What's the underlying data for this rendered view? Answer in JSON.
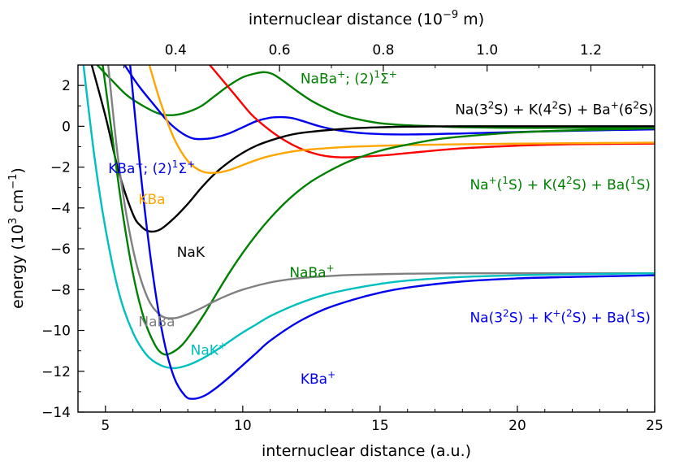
{
  "chart_data": {
    "type": "line",
    "xlabel": "internuclear distance (a.u.)",
    "ylabel_parts": [
      "energy (10",
      "3",
      " cm",
      "−1",
      ")"
    ],
    "top_axis_label_parts": [
      "internuclear distance (10",
      "−9",
      " m)"
    ],
    "xlim": [
      4,
      25
    ],
    "ylim": [
      -14,
      3
    ],
    "x_ticks": [
      5,
      10,
      15,
      20,
      25
    ],
    "y_ticks": [
      -14,
      -12,
      -10,
      -8,
      -6,
      -4,
      -2,
      0,
      2
    ],
    "y_tick_labels": [
      "−14",
      "−12",
      "−10",
      "−8",
      "−6",
      "−4",
      "−2",
      "0",
      "2"
    ],
    "top_ticks_nm": [
      0.4,
      0.6,
      0.8,
      1.0,
      1.2
    ],
    "top_tick_labels": [
      "0.4",
      "0.6",
      "0.8",
      "1.0",
      "1.2"
    ],
    "bohr_nm": 0.0529177,
    "series": [
      {
        "name": "NaBa+ (2)1Σ+",
        "color": "#008000",
        "x": [
          4.7,
          5.2,
          5.8,
          6.5,
          7.0,
          7.5,
          8.0,
          8.5,
          9.0,
          9.5,
          10.0,
          10.5,
          10.8,
          11.1,
          11.5,
          12.0,
          12.5,
          13.0,
          13.5,
          14.0,
          15.0,
          16.0,
          17.0,
          18.0,
          20.0,
          22.0,
          25.0
        ],
        "y": [
          3.0,
          2.3,
          1.5,
          0.9,
          0.6,
          0.55,
          0.7,
          1.0,
          1.5,
          2.0,
          2.4,
          2.6,
          2.65,
          2.55,
          2.2,
          1.7,
          1.25,
          0.9,
          0.6,
          0.4,
          0.15,
          0.05,
          0.0,
          -0.05,
          -0.08,
          -0.08,
          -0.1
        ]
      },
      {
        "name": "KBa+ (2)1Σ+",
        "color": "#0000ee",
        "x": [
          5.7,
          6.2,
          6.8,
          7.3,
          7.8,
          8.2,
          8.6,
          9.0,
          9.5,
          10.0,
          10.5,
          11.0,
          11.4,
          11.8,
          12.2,
          12.8,
          13.5,
          14.5,
          16.0,
          18.0,
          20.0,
          22.0,
          25.0
        ],
        "y": [
          3.0,
          2.0,
          1.0,
          0.2,
          -0.35,
          -0.6,
          -0.62,
          -0.55,
          -0.35,
          -0.05,
          0.25,
          0.42,
          0.45,
          0.4,
          0.25,
          0.0,
          -0.2,
          -0.35,
          -0.4,
          -0.35,
          -0.28,
          -0.22,
          -0.15
        ]
      },
      {
        "name": "red curve",
        "color": "#ff0000",
        "x": [
          8.8,
          9.3,
          9.8,
          10.3,
          10.8,
          11.3,
          11.8,
          12.3,
          12.8,
          13.3,
          13.8,
          14.5,
          15.5,
          16.5,
          18.0,
          20.0,
          22.0,
          25.0
        ],
        "y": [
          3.0,
          2.2,
          1.4,
          0.6,
          0.0,
          -0.5,
          -0.9,
          -1.2,
          -1.4,
          -1.5,
          -1.52,
          -1.48,
          -1.38,
          -1.25,
          -1.08,
          -0.95,
          -0.88,
          -0.85
        ]
      },
      {
        "name": "NaK",
        "color": "#000000",
        "x": [
          4.5,
          5.0,
          5.5,
          6.0,
          6.3,
          6.6,
          7.0,
          7.5,
          8.0,
          8.5,
          9.0,
          9.5,
          10.0,
          10.5,
          11.0,
          11.5,
          12.0,
          13.0,
          14.0,
          15.0,
          16.0,
          18.0,
          20.0,
          25.0
        ],
        "y": [
          3.0,
          0.5,
          -2.3,
          -4.3,
          -4.9,
          -5.15,
          -5.05,
          -4.5,
          -3.8,
          -3.0,
          -2.3,
          -1.75,
          -1.3,
          -0.95,
          -0.7,
          -0.5,
          -0.35,
          -0.2,
          -0.1,
          -0.05,
          -0.02,
          0.0,
          0.0,
          0.0
        ]
      },
      {
        "name": "KBa",
        "color": "#ffa500",
        "x": [
          6.6,
          7.0,
          7.5,
          8.0,
          8.5,
          9.0,
          9.5,
          10.0,
          10.5,
          11.0,
          12.0,
          13.0,
          14.0,
          16.0,
          18.0,
          20.0,
          22.0,
          25.0
        ],
        "y": [
          3.0,
          1.2,
          -0.6,
          -1.7,
          -2.2,
          -2.28,
          -2.15,
          -1.9,
          -1.65,
          -1.45,
          -1.2,
          -1.08,
          -1.0,
          -0.92,
          -0.88,
          -0.85,
          -0.83,
          -0.8
        ]
      },
      {
        "name": "NaBa+",
        "color": "#008000",
        "x": [
          4.9,
          5.2,
          5.6,
          6.0,
          6.4,
          6.8,
          7.1,
          7.4,
          7.8,
          8.2,
          8.6,
          9.0,
          9.5,
          10.0,
          10.5,
          11.0,
          11.5,
          12.0,
          12.5,
          13.0,
          13.5,
          14.0,
          15.0,
          16.0,
          17.0,
          18.0,
          20.0,
          22.0,
          25.0
        ],
        "y": [
          3.0,
          0.0,
          -4.0,
          -7.2,
          -9.4,
          -10.7,
          -11.15,
          -11.1,
          -10.7,
          -10.0,
          -9.2,
          -8.3,
          -7.2,
          -6.2,
          -5.3,
          -4.5,
          -3.8,
          -3.2,
          -2.7,
          -2.3,
          -1.95,
          -1.65,
          -1.2,
          -0.9,
          -0.65,
          -0.5,
          -0.3,
          -0.2,
          -0.1
        ]
      },
      {
        "name": "NaBa",
        "color": "#808080",
        "x": [
          5.1,
          5.5,
          6.0,
          6.5,
          7.0,
          7.5,
          8.0,
          8.5,
          9.0,
          9.5,
          10.0,
          11.0,
          12.0,
          13.0,
          14.0,
          16.0,
          18.0,
          20.0,
          22.0,
          25.0
        ],
        "y": [
          3.0,
          -2.0,
          -6.0,
          -8.3,
          -9.25,
          -9.4,
          -9.2,
          -8.9,
          -8.55,
          -8.25,
          -8.0,
          -7.65,
          -7.45,
          -7.35,
          -7.28,
          -7.22,
          -7.2,
          -7.2,
          -7.2,
          -7.2
        ]
      },
      {
        "name": "NaK+",
        "color": "#00bfbf",
        "x": [
          4.2,
          4.6,
          5.0,
          5.5,
          6.0,
          6.5,
          7.0,
          7.5,
          8.0,
          8.5,
          9.0,
          9.5,
          10.0,
          10.5,
          11.0,
          12.0,
          13.0,
          14.0,
          15.0,
          16.0,
          18.0,
          20.0,
          22.0,
          25.0
        ],
        "y": [
          3.0,
          -1.5,
          -5.0,
          -8.2,
          -10.1,
          -11.2,
          -11.7,
          -11.85,
          -11.7,
          -11.4,
          -11.0,
          -10.55,
          -10.1,
          -9.7,
          -9.3,
          -8.7,
          -8.25,
          -7.95,
          -7.72,
          -7.56,
          -7.38,
          -7.3,
          -7.25,
          -7.2
        ]
      },
      {
        "name": "KBa+",
        "color": "#0000ee",
        "x": [
          5.9,
          6.3,
          6.7,
          7.1,
          7.5,
          7.9,
          8.2,
          8.6,
          9.0,
          9.5,
          10.0,
          10.5,
          11.0,
          12.0,
          13.0,
          14.0,
          15.0,
          16.0,
          18.0,
          20.0,
          22.0,
          25.0
        ],
        "y": [
          3.0,
          -2.5,
          -7.0,
          -10.3,
          -12.3,
          -13.2,
          -13.35,
          -13.2,
          -12.85,
          -12.3,
          -11.7,
          -11.1,
          -10.5,
          -9.6,
          -8.95,
          -8.5,
          -8.15,
          -7.9,
          -7.6,
          -7.45,
          -7.38,
          -7.3
        ]
      }
    ],
    "annotations": [
      {
        "id": "nabap2",
        "color": "#008000",
        "x": 12.1,
        "y": 2.1,
        "parts": [
          [
            "NaBa",
            ""
          ],
          [
            "+",
            "sup"
          ],
          [
            "; (2)",
            ""
          ],
          [
            "1",
            "sup"
          ],
          [
            "Σ",
            ""
          ],
          [
            "+",
            "sup"
          ]
        ]
      },
      {
        "id": "asym0",
        "color": "#000000",
        "x": 24.95,
        "y": 0.6,
        "anchor": "end",
        "parts": [
          [
            "Na(3",
            ""
          ],
          [
            "2",
            "sup"
          ],
          [
            "S) + K(4",
            ""
          ],
          [
            "2",
            "sup"
          ],
          [
            "S) + Ba",
            ""
          ],
          [
            "+",
            "sup"
          ],
          [
            "(6",
            ""
          ],
          [
            "2",
            "sup"
          ],
          [
            "S)",
            ""
          ]
        ]
      },
      {
        "id": "kbap2",
        "color": "#0000ee",
        "x": 5.1,
        "y": -2.3,
        "parts": [
          [
            "KBa",
            ""
          ],
          [
            "+",
            "sup"
          ],
          [
            "; (2)",
            ""
          ],
          [
            "1",
            "sup"
          ],
          [
            "Σ",
            ""
          ],
          [
            "+",
            "sup"
          ]
        ]
      },
      {
        "id": "asym1",
        "color": "#008000",
        "x": 24.85,
        "y": -3.1,
        "anchor": "end",
        "parts": [
          [
            "Na",
            ""
          ],
          [
            "+",
            "sup"
          ],
          [
            "(",
            ""
          ],
          [
            "1",
            "sup"
          ],
          [
            "S) + K(4",
            ""
          ],
          [
            "2",
            "sup"
          ],
          [
            "S) + Ba(",
            ""
          ],
          [
            "1",
            "sup"
          ],
          [
            "S)",
            ""
          ]
        ]
      },
      {
        "id": "kba",
        "color": "#ffa500",
        "x": 6.2,
        "y": -3.8,
        "parts": [
          [
            "KBa",
            ""
          ]
        ]
      },
      {
        "id": "nak",
        "color": "#000000",
        "x": 7.6,
        "y": -6.4,
        "parts": [
          [
            "NaK",
            ""
          ]
        ]
      },
      {
        "id": "nabap",
        "color": "#008000",
        "x": 11.7,
        "y": -7.4,
        "parts": [
          [
            "NaBa",
            ""
          ],
          [
            "+",
            "sup"
          ]
        ]
      },
      {
        "id": "naba",
        "color": "#808080",
        "x": 6.2,
        "y": -9.8,
        "parts": [
          [
            "NaBa",
            ""
          ]
        ]
      },
      {
        "id": "nakp",
        "color": "#00bfbf",
        "x": 8.1,
        "y": -11.2,
        "parts": [
          [
            "NaK",
            ""
          ],
          [
            "+",
            "sup"
          ]
        ]
      },
      {
        "id": "asym2",
        "color": "#0000ee",
        "x": 24.85,
        "y": -9.6,
        "anchor": "end",
        "parts": [
          [
            "Na(3",
            ""
          ],
          [
            "2",
            "sup"
          ],
          [
            "S) + K",
            ""
          ],
          [
            "+",
            "sup"
          ],
          [
            "(",
            ""
          ],
          [
            "2",
            "sup"
          ],
          [
            "S) + Ba(",
            ""
          ],
          [
            "1",
            "sup"
          ],
          [
            "S)",
            ""
          ]
        ]
      },
      {
        "id": "kbap",
        "color": "#0000ee",
        "x": 12.1,
        "y": -12.6,
        "parts": [
          [
            "KBa",
            ""
          ],
          [
            "+",
            "sup"
          ]
        ]
      }
    ]
  }
}
